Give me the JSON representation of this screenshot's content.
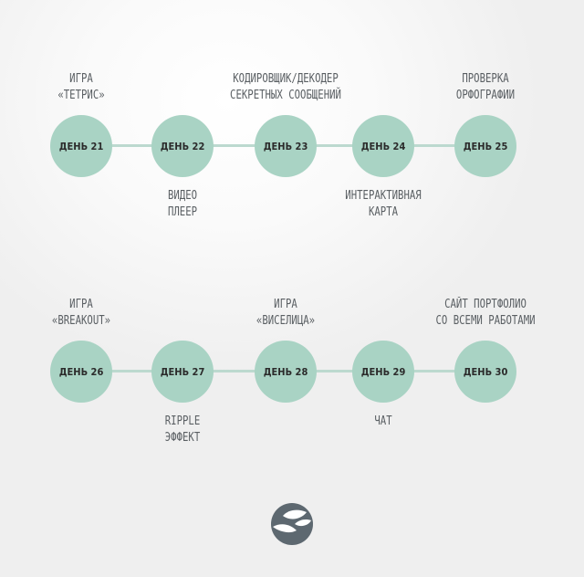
{
  "timelines": [
    {
      "nodes": [
        {
          "day": "ДЕНЬ 21",
          "label": [
            "ИГРА",
            "«ТЕТРИС»"
          ],
          "label_position": "top"
        },
        {
          "day": "ДЕНЬ 22",
          "label": [
            "ВИДЕО",
            "ПЛЕЕР"
          ],
          "label_position": "bottom"
        },
        {
          "day": "ДЕНЬ 23",
          "label": [
            "КОДИРОВЩИК/ДЕКОДЕР",
            "СЕКРЕТНЫХ СООБЩЕНИЙ"
          ],
          "label_position": "top"
        },
        {
          "day": "ДЕНЬ 24",
          "label": [
            "ИНТЕРАКТИВНАЯ",
            "КАРТА"
          ],
          "label_position": "bottom"
        },
        {
          "day": "ДЕНЬ 25",
          "label": [
            "ПРОВЕРКА",
            "ОРФОГРАФИИ"
          ],
          "label_position": "top"
        }
      ]
    },
    {
      "nodes": [
        {
          "day": "ДЕНЬ 26",
          "label": [
            "ИГРА",
            "«BREAKOUT»"
          ],
          "label_position": "top"
        },
        {
          "day": "ДЕНЬ 27",
          "label": [
            "RIPPLE",
            "ЭФФЕКТ"
          ],
          "label_position": "bottom"
        },
        {
          "day": "ДЕНЬ 28",
          "label": [
            "ИГРА",
            "«ВИСЕЛИЦА»"
          ],
          "label_position": "top"
        },
        {
          "day": "ДЕНЬ 29",
          "label": [
            "ЧАТ"
          ],
          "label_position": "bottom"
        },
        {
          "day": "ДЕНЬ 30",
          "label": [
            "САЙТ ПОРТФОЛИО",
            "СО ВСЕМИ РАБОТАМИ"
          ],
          "label_position": "top"
        }
      ]
    }
  ],
  "colors": {
    "node_fill": "#a9d3c4",
    "connector": "#bcd9cf",
    "label_text": "#5a5f63",
    "day_text": "#2b2b2b",
    "logo": "#5d6870"
  },
  "logo": {
    "icon": "leaf-logo-icon"
  }
}
